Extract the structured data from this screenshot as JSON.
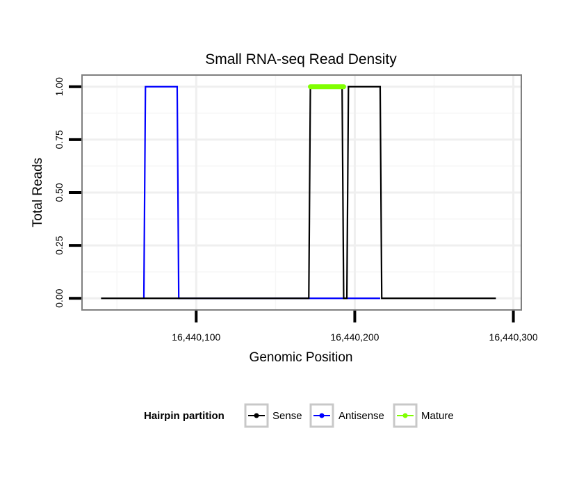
{
  "chart_data": {
    "type": "line",
    "title": "Small RNA-seq Read Density",
    "xlabel": "Genomic Position",
    "ylabel": "Total Reads",
    "xlim": [
      16440028,
      16440305
    ],
    "ylim": [
      -0.055,
      1.055
    ],
    "x_ticks": [
      16440100,
      16440200,
      16440300
    ],
    "x_tick_labels": [
      "16,440,100",
      "16,440,200",
      "16,440,300"
    ],
    "y_ticks": [
      0,
      0.25,
      0.5,
      0.75,
      1
    ],
    "y_tick_labels": [
      "0.00",
      "0.25",
      "0.50",
      "0.75",
      "1.00"
    ],
    "grid": true,
    "legend": {
      "title": "Hairpin partition",
      "position": "bottom",
      "entries": [
        "Sense",
        "Antisense",
        "Mature"
      ]
    },
    "series": [
      {
        "name": "Sense",
        "color": "#000000",
        "x": [
          16440040,
          16440171,
          16440172,
          16440192,
          16440193,
          16440195,
          16440196,
          16440216,
          16440217,
          16440289
        ],
        "y": [
          0,
          0,
          1,
          1,
          0,
          0,
          1,
          1,
          0,
          0
        ]
      },
      {
        "name": "Antisense",
        "color": "#0000ff",
        "x": [
          16440067,
          16440068,
          16440088,
          16440089,
          16440171,
          16440216
        ],
        "y": [
          0,
          1,
          1,
          0,
          0,
          0
        ]
      },
      {
        "name": "Mature",
        "color": "#80ff00",
        "x": [
          16440172,
          16440193
        ],
        "y": [
          1,
          1
        ]
      }
    ]
  }
}
